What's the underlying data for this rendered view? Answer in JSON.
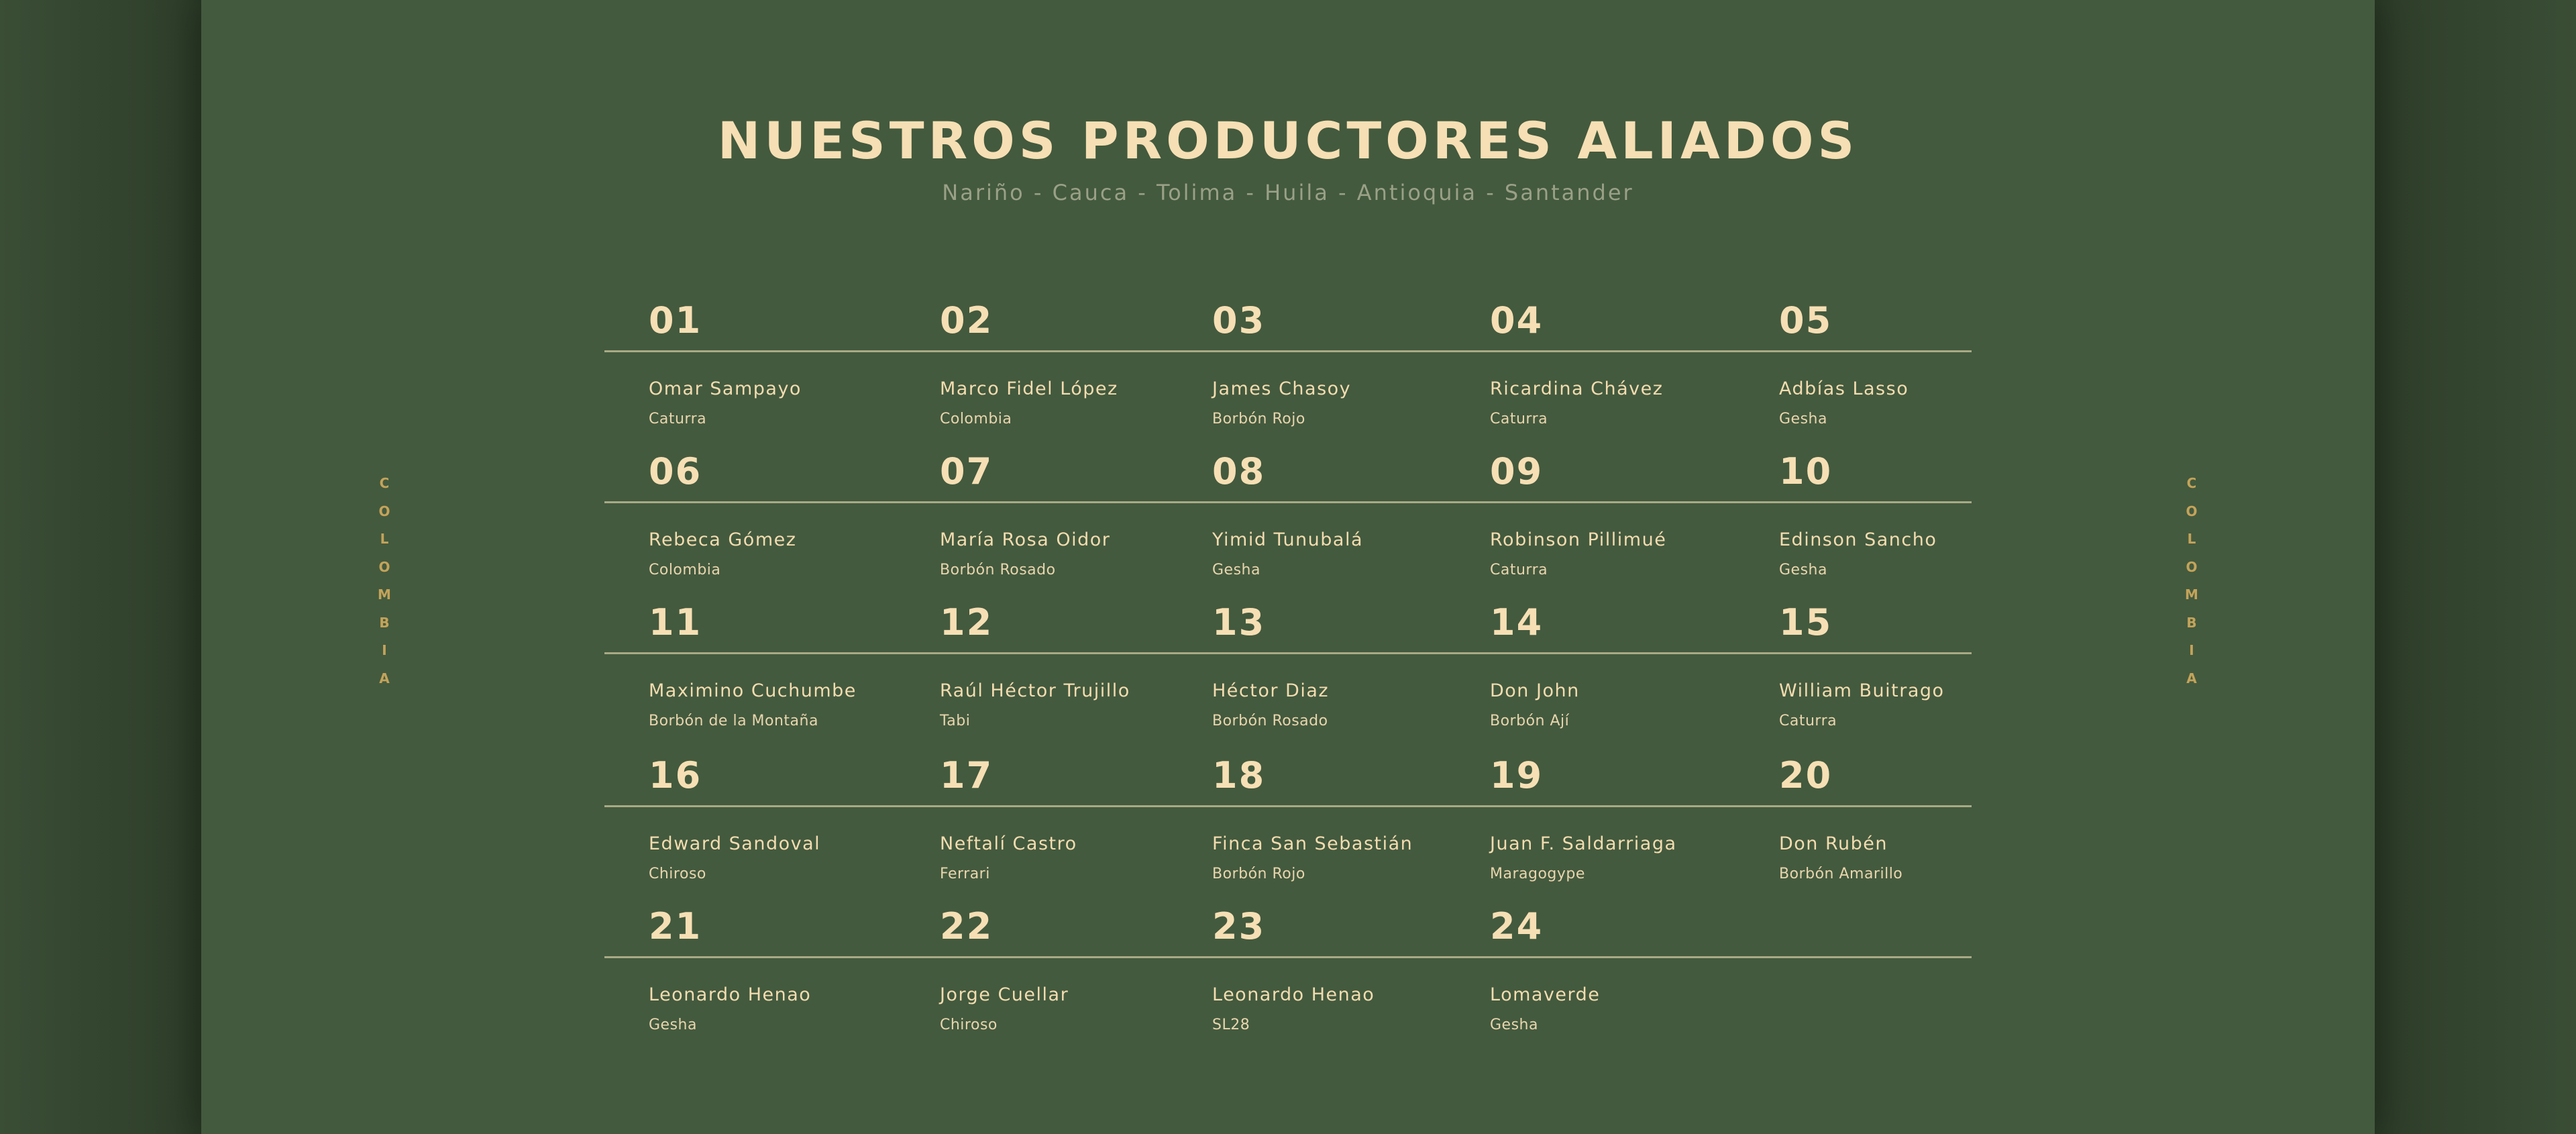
{
  "header": {
    "title": "NUESTROS PRODUCTORES ALIADOS",
    "subtitle": "Nariño - Cauca - Tolima - Huila - Antioquia - Santander"
  },
  "side_label": [
    "C",
    "O",
    "L",
    "O",
    "M",
    "B",
    "I",
    "A"
  ],
  "colors": {
    "background": "#435a3e",
    "text": "#f6dfb4",
    "accent": "#c4a35a"
  },
  "producers": [
    {
      "number": "01",
      "name": "Omar Sampayo",
      "variety": "Caturra"
    },
    {
      "number": "02",
      "name": "Marco Fidel López",
      "variety": "Colombia"
    },
    {
      "number": "03",
      "name": "James Chasoy",
      "variety": "Borbón Rojo"
    },
    {
      "number": "04",
      "name": "Ricardina Chávez",
      "variety": "Caturra"
    },
    {
      "number": "05",
      "name": "Adbías Lasso",
      "variety": "Gesha"
    },
    {
      "number": "06",
      "name": "Rebeca Gómez",
      "variety": "Colombia"
    },
    {
      "number": "07",
      "name": "María Rosa Oidor",
      "variety": "Borbón Rosado"
    },
    {
      "number": "08",
      "name": "Yimid Tunubalá",
      "variety": "Gesha"
    },
    {
      "number": "09",
      "name": "Robinson Pillimué",
      "variety": "Caturra"
    },
    {
      "number": "10",
      "name": "Edinson Sancho",
      "variety": "Gesha"
    },
    {
      "number": "11",
      "name": "Maximino Cuchumbe",
      "variety": "Borbón de la Montaña"
    },
    {
      "number": "12",
      "name": "Raúl Héctor Trujillo",
      "variety": "Tabi"
    },
    {
      "number": "13",
      "name": "Héctor Diaz",
      "variety": "Borbón Rosado"
    },
    {
      "number": "14",
      "name": "Don John",
      "variety": "Borbón Ají"
    },
    {
      "number": "15",
      "name": "William Buitrago",
      "variety": "Caturra"
    },
    {
      "number": "16",
      "name": "Edward Sandoval",
      "variety": "Chiroso"
    },
    {
      "number": "17",
      "name": "Neftalí Castro",
      "variety": "Ferrari"
    },
    {
      "number": "18",
      "name": "Finca San Sebastián",
      "variety": "Borbón Rojo"
    },
    {
      "number": "19",
      "name": "Juan F. Saldarriaga",
      "variety": "Maragogype"
    },
    {
      "number": "20",
      "name": "Don Rubén",
      "variety": "Borbón Amarillo"
    },
    {
      "number": "21",
      "name": "Leonardo Henao",
      "variety": "Gesha"
    },
    {
      "number": "22",
      "name": "Jorge Cuellar",
      "variety": "Chiroso"
    },
    {
      "number": "23",
      "name": "Leonardo Henao",
      "variety": "SL28"
    },
    {
      "number": "24",
      "name": "Lomaverde",
      "variety": "Gesha"
    }
  ]
}
